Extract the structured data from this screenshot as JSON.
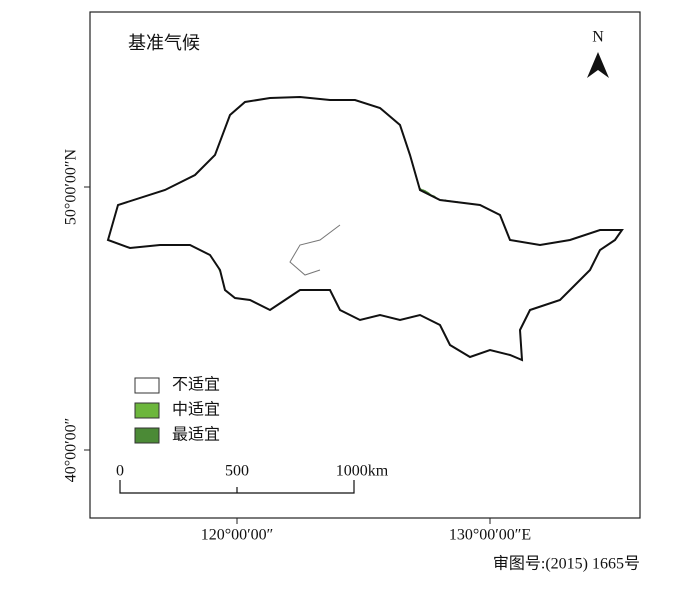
{
  "map": {
    "title": "基准气候",
    "north": "N",
    "legend": [
      {
        "label": "不适宜",
        "color": "#ffffff"
      },
      {
        "label": "中适宜",
        "color": "#6cb63c"
      },
      {
        "label": "最适宜",
        "color": "#4b8a36"
      }
    ],
    "scale_labels": [
      "0",
      "500",
      "1000km"
    ],
    "lat_labels": [
      "50°00′00″N",
      "40°00′00″"
    ],
    "lon_labels": [
      "120°00′00″",
      "130°00′00″E"
    ],
    "approval": "审图号:(2015) 1665号"
  }
}
